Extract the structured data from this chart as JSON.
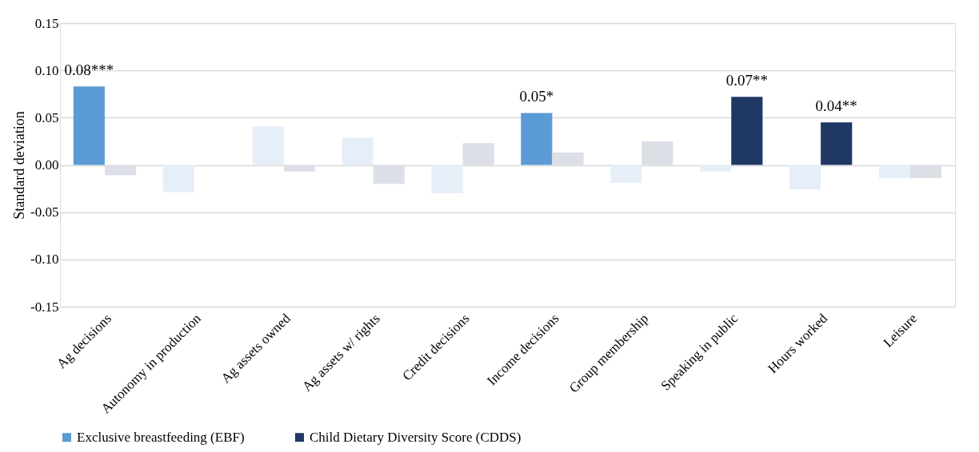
{
  "chart_data": {
    "type": "bar",
    "ylabel": "Standard deviation",
    "categories": [
      "Ag decisions",
      "Autonomy in production",
      "Ag assets owned",
      "Ag assets w/ rights",
      "Credit decisions",
      "Income decisions",
      "Group membership",
      "Speaking in public",
      "Hours worked",
      "Leisure"
    ],
    "series": [
      {
        "name": "Exclusive breastfeeding (EBF)",
        "color": "#5b9bd5",
        "colors": [
          "#5b9bd5",
          "#e6eef8",
          "#e6eef8",
          "#e6eef8",
          "#e6eef8",
          "#5b9bd5",
          "#e6eef8",
          "#e6eef8",
          "#e6eef8",
          "#e6eef8"
        ],
        "values": [
          0.083,
          -0.029,
          0.041,
          0.029,
          -0.03,
          0.055,
          -0.019,
          -0.007,
          -0.026,
          -0.014
        ],
        "value_labels": [
          "0.08***",
          null,
          null,
          null,
          null,
          "0.05*",
          null,
          null,
          null,
          null
        ]
      },
      {
        "name": "Child Dietary Diversity Score (CDDS)",
        "color": "#203864",
        "colors": [
          "#dcdfe6",
          "#dcdfe6",
          "#dcdfe6",
          "#dcdfe6",
          "#dcdfe6",
          "#dcdfe6",
          "#dcdfe6",
          "#203864",
          "#203864",
          "#dcdfe6"
        ],
        "values": [
          -0.011,
          0,
          -0.007,
          -0.02,
          0.023,
          0.013,
          0.025,
          0.072,
          0.045,
          -0.014
        ],
        "value_labels": [
          null,
          null,
          null,
          null,
          null,
          null,
          null,
          "0.07**",
          "0.04**",
          null
        ]
      }
    ],
    "ylim": [
      -0.15,
      0.15
    ],
    "yticks": [
      {
        "value": -0.15,
        "label": "-0.15"
      },
      {
        "value": -0.1,
        "label": "-0.10"
      },
      {
        "value": -0.05,
        "label": "-0.05"
      },
      {
        "value": 0,
        "label": "0.00"
      },
      {
        "value": 0.05,
        "label": "0.05"
      },
      {
        "value": 0.1,
        "label": "0.10"
      },
      {
        "value": 0.15,
        "label": "0.15"
      }
    ],
    "grid": "y",
    "legend": "bottom"
  }
}
